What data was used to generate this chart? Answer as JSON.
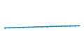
{
  "x": [
    2004,
    2005,
    2006,
    2007,
    2008,
    2009,
    2010,
    2011,
    2012,
    2013,
    2014,
    2015,
    2016,
    2017,
    2018,
    2019,
    2020
  ],
  "y": [
    8.0,
    8.3,
    8.7,
    9.1,
    9.5,
    9.8,
    10.2,
    10.6,
    11.0,
    11.3,
    11.7,
    12.0,
    12.4,
    12.7,
    13.0,
    13.3,
    13.6
  ],
  "line_color": "#2e8bc0",
  "line_width": 1.2,
  "background_color": "#ffffff",
  "ylim": [
    0,
    80
  ],
  "xlim": [
    2003,
    2021
  ]
}
